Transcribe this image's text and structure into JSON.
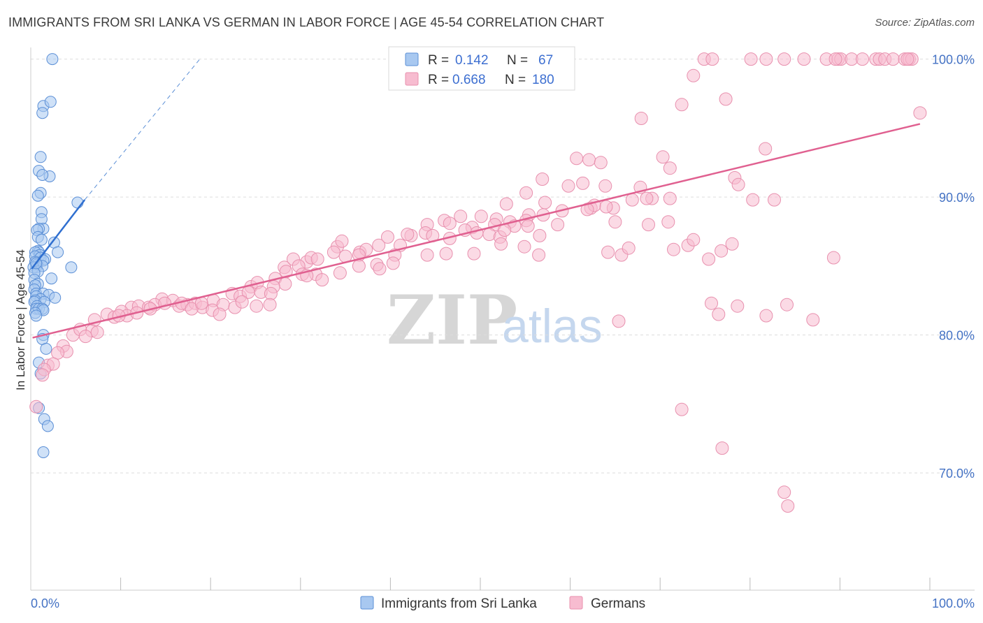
{
  "title": "IMMIGRANTS FROM SRI LANKA VS GERMAN IN LABOR FORCE | AGE 45-54 CORRELATION CHART",
  "source": "Source: ZipAtlas.com",
  "watermark": {
    "zip": "ZIP",
    "atlas": "atlas"
  },
  "colors": {
    "series1_fill": "#a8c8f0",
    "series1_stroke": "#5b8fd6",
    "series1_line": "#2f6fd0",
    "series2_fill": "#f7bcd0",
    "series2_stroke": "#e890ae",
    "series2_line": "#e06090",
    "axis_text": "#4472c4",
    "grid": "#dddddd"
  },
  "legend_top": {
    "rows": [
      {
        "r_label": "R =",
        "r_value": "0.142",
        "n_label": "N =",
        "n_value": "67"
      },
      {
        "r_label": "R =",
        "r_value": "0.668",
        "n_label": "N =",
        "n_value": "180"
      }
    ]
  },
  "legend_bottom": [
    "Immigrants from Sri Lanka",
    "Germans"
  ],
  "chart_data": {
    "type": "scatter",
    "title": "IMMIGRANTS FROM SRI LANKA VS GERMAN IN LABOR FORCE | AGE 45-54 CORRELATION CHART",
    "xlabel": "",
    "ylabel": "In Labor Force | Age 45-54",
    "xlim": [
      0,
      100
    ],
    "ylim": [
      61.5,
      101.5
    ],
    "x_tick_labels": [
      {
        "value": 0,
        "label": "0.0%"
      },
      {
        "value": 100,
        "label": "100.0%"
      }
    ],
    "y_tick_labels": [
      {
        "value": 70,
        "label": "70.0%"
      },
      {
        "value": 80,
        "label": "80.0%"
      },
      {
        "value": 90,
        "label": "90.0%"
      },
      {
        "value": 100,
        "label": "100.0%"
      }
    ],
    "x_minor_ticks": [
      10,
      20,
      30,
      40,
      50,
      60,
      70,
      80,
      90,
      100
    ],
    "grid": true,
    "legend_position": "top-center",
    "series": [
      {
        "name": "Immigrants from Sri Lanka",
        "R": 0.142,
        "N": 67,
        "trend": {
          "x": [
            0.1,
            6.0
          ],
          "y": [
            84.8,
            89.8
          ]
        },
        "trend_extension": {
          "x": [
            6.0,
            18.8
          ],
          "y": [
            89.8,
            100.0
          ]
        },
        "points": [
          [
            2.4,
            100.0
          ],
          [
            1.4,
            96.6
          ],
          [
            2.2,
            96.9
          ],
          [
            1.3,
            96.1
          ],
          [
            1.1,
            92.9
          ],
          [
            0.9,
            91.9
          ],
          [
            2.1,
            91.5
          ],
          [
            1.3,
            91.6
          ],
          [
            1.1,
            90.3
          ],
          [
            0.8,
            90.1
          ],
          [
            5.2,
            89.6
          ],
          [
            1.2,
            88.9
          ],
          [
            1.2,
            88.4
          ],
          [
            1.4,
            87.7
          ],
          [
            0.9,
            87.7
          ],
          [
            0.7,
            87.6
          ],
          [
            0.8,
            87.1
          ],
          [
            1.2,
            86.9
          ],
          [
            2.6,
            86.7
          ],
          [
            3.0,
            86.0
          ],
          [
            0.8,
            86.1
          ],
          [
            0.9,
            86.0
          ],
          [
            0.5,
            86.0
          ],
          [
            1.0,
            85.8
          ],
          [
            0.5,
            85.7
          ],
          [
            1.1,
            85.6
          ],
          [
            1.6,
            85.5
          ],
          [
            1.4,
            85.4
          ],
          [
            0.5,
            85.3
          ],
          [
            0.7,
            85.1
          ],
          [
            0.6,
            84.9
          ],
          [
            1.3,
            85.0
          ],
          [
            0.3,
            84.9
          ],
          [
            4.5,
            84.9
          ],
          [
            0.8,
            84.6
          ],
          [
            0.4,
            84.5
          ],
          [
            2.3,
            84.1
          ],
          [
            0.4,
            84.0
          ],
          [
            0.8,
            83.7
          ],
          [
            0.5,
            83.6
          ],
          [
            0.4,
            83.3
          ],
          [
            0.6,
            83.0
          ],
          [
            1.4,
            83.0
          ],
          [
            2.0,
            82.9
          ],
          [
            0.6,
            82.8
          ],
          [
            2.7,
            82.7
          ],
          [
            1.1,
            82.6
          ],
          [
            0.5,
            82.5
          ],
          [
            0.4,
            82.4
          ],
          [
            1.5,
            82.4
          ],
          [
            0.7,
            82.1
          ],
          [
            0.6,
            81.9
          ],
          [
            0.9,
            81.9
          ],
          [
            1.3,
            81.9
          ],
          [
            1.4,
            81.8
          ],
          [
            0.5,
            81.6
          ],
          [
            0.6,
            81.4
          ],
          [
            1.4,
            80.0
          ],
          [
            1.3,
            79.7
          ],
          [
            1.7,
            79.0
          ],
          [
            0.9,
            78.0
          ],
          [
            1.1,
            77.2
          ],
          [
            0.9,
            74.7
          ],
          [
            1.5,
            73.9
          ],
          [
            1.9,
            73.4
          ],
          [
            1.4,
            71.5
          ],
          [
            0.6,
            85.2
          ]
        ]
      },
      {
        "name": "Germans",
        "R": 0.668,
        "N": 180,
        "trend": {
          "x": [
            0.2,
            98.9
          ],
          "y": [
            79.8,
            95.3
          ]
        },
        "points": [
          [
            74.9,
            100.0
          ],
          [
            75.8,
            100.0
          ],
          [
            80.1,
            100.0
          ],
          [
            81.8,
            100.0
          ],
          [
            83.8,
            100.0
          ],
          [
            86.0,
            100.0
          ],
          [
            88.5,
            100.0
          ],
          [
            89.8,
            100.0
          ],
          [
            90.1,
            100.0
          ],
          [
            91.3,
            100.0
          ],
          [
            92.5,
            100.0
          ],
          [
            94.0,
            100.0
          ],
          [
            94.4,
            100.0
          ],
          [
            95.0,
            100.0
          ],
          [
            95.9,
            100.0
          ],
          [
            97.2,
            100.0
          ],
          [
            97.7,
            100.0
          ],
          [
            98.0,
            100.0
          ],
          [
            97.5,
            100.0
          ],
          [
            89.5,
            100.0
          ],
          [
            73.7,
            98.8
          ],
          [
            77.3,
            97.1
          ],
          [
            72.4,
            96.7
          ],
          [
            98.9,
            96.1
          ],
          [
            67.9,
            95.7
          ],
          [
            81.7,
            93.5
          ],
          [
            60.7,
            92.8
          ],
          [
            70.3,
            92.9
          ],
          [
            62.1,
            92.7
          ],
          [
            63.4,
            92.5
          ],
          [
            71.1,
            92.1
          ],
          [
            56.9,
            91.3
          ],
          [
            78.3,
            91.4
          ],
          [
            78.7,
            90.9
          ],
          [
            59.8,
            90.8
          ],
          [
            61.4,
            91.0
          ],
          [
            63.9,
            90.8
          ],
          [
            67.8,
            90.7
          ],
          [
            55.1,
            90.3
          ],
          [
            69.1,
            89.9
          ],
          [
            71.1,
            89.9
          ],
          [
            66.9,
            89.8
          ],
          [
            68.5,
            89.9
          ],
          [
            80.3,
            89.8
          ],
          [
            82.7,
            89.8
          ],
          [
            57.2,
            89.6
          ],
          [
            59.1,
            89.0
          ],
          [
            64.8,
            89.2
          ],
          [
            62.3,
            89.2
          ],
          [
            62.7,
            89.4
          ],
          [
            57.0,
            88.7
          ],
          [
            61.9,
            89.1
          ],
          [
            64.0,
            89.3
          ],
          [
            52.9,
            89.5
          ],
          [
            51.8,
            88.4
          ],
          [
            53.3,
            88.2
          ],
          [
            55.4,
            88.7
          ],
          [
            47.8,
            88.6
          ],
          [
            50.1,
            88.6
          ],
          [
            51.6,
            88.0
          ],
          [
            53.8,
            87.9
          ],
          [
            55.1,
            88.3
          ],
          [
            58.6,
            88.0
          ],
          [
            65.0,
            88.2
          ],
          [
            68.7,
            88.0
          ],
          [
            70.9,
            88.2
          ],
          [
            44.1,
            88.0
          ],
          [
            46.0,
            88.3
          ],
          [
            46.6,
            88.1
          ],
          [
            49.1,
            87.8
          ],
          [
            49.6,
            87.4
          ],
          [
            48.3,
            87.6
          ],
          [
            43.9,
            87.4
          ],
          [
            42.3,
            87.2
          ],
          [
            44.7,
            87.2
          ],
          [
            46.6,
            87.0
          ],
          [
            51.0,
            87.3
          ],
          [
            52.2,
            87.1
          ],
          [
            52.7,
            87.6
          ],
          [
            55.3,
            87.9
          ],
          [
            56.6,
            87.2
          ],
          [
            41.9,
            87.3
          ],
          [
            39.7,
            87.1
          ],
          [
            41.1,
            86.5
          ],
          [
            34.1,
            86.4
          ],
          [
            34.6,
            86.8
          ],
          [
            36.6,
            86.0
          ],
          [
            37.3,
            86.2
          ],
          [
            38.7,
            86.5
          ],
          [
            40.5,
            85.8
          ],
          [
            44.1,
            85.8
          ],
          [
            46.2,
            85.9
          ],
          [
            49.3,
            85.9
          ],
          [
            52.3,
            86.6
          ],
          [
            54.9,
            86.4
          ],
          [
            56.5,
            85.8
          ],
          [
            64.2,
            86.0
          ],
          [
            65.7,
            85.8
          ],
          [
            66.5,
            86.3
          ],
          [
            73.1,
            86.5
          ],
          [
            75.4,
            85.5
          ],
          [
            71.5,
            86.2
          ],
          [
            76.8,
            86.1
          ],
          [
            78.0,
            86.6
          ],
          [
            89.3,
            85.6
          ],
          [
            73.7,
            86.9
          ],
          [
            29.2,
            85.5
          ],
          [
            30.7,
            85.3
          ],
          [
            31.2,
            85.6
          ],
          [
            31.9,
            85.5
          ],
          [
            33.7,
            86.0
          ],
          [
            35.0,
            85.7
          ],
          [
            36.5,
            85.8
          ],
          [
            38.5,
            85.1
          ],
          [
            40.3,
            85.2
          ],
          [
            28.2,
            84.9
          ],
          [
            29.8,
            85.0
          ],
          [
            30.2,
            84.4
          ],
          [
            31.7,
            84.4
          ],
          [
            32.4,
            84.0
          ],
          [
            34.4,
            84.5
          ],
          [
            36.5,
            85.0
          ],
          [
            38.8,
            84.8
          ],
          [
            27.2,
            84.1
          ],
          [
            28.3,
            83.7
          ],
          [
            24.5,
            83.5
          ],
          [
            25.2,
            83.8
          ],
          [
            27.0,
            83.5
          ],
          [
            28.4,
            84.6
          ],
          [
            30.7,
            84.3
          ],
          [
            22.4,
            83.0
          ],
          [
            23.3,
            82.8
          ],
          [
            24.2,
            83.1
          ],
          [
            25.6,
            83.1
          ],
          [
            26.7,
            83.0
          ],
          [
            20.3,
            82.5
          ],
          [
            21.4,
            82.2
          ],
          [
            22.7,
            82.0
          ],
          [
            23.5,
            82.4
          ],
          [
            25.1,
            82.1
          ],
          [
            26.6,
            82.2
          ],
          [
            14.6,
            82.6
          ],
          [
            15.8,
            82.5
          ],
          [
            16.5,
            82.1
          ],
          [
            17.4,
            82.2
          ],
          [
            18.3,
            82.3
          ],
          [
            19.1,
            82.0
          ],
          [
            11.2,
            82.0
          ],
          [
            12.0,
            82.1
          ],
          [
            13.1,
            82.0
          ],
          [
            13.8,
            82.2
          ],
          [
            14.9,
            82.3
          ],
          [
            16.8,
            82.3
          ],
          [
            17.9,
            81.9
          ],
          [
            19.0,
            82.3
          ],
          [
            20.2,
            81.8
          ],
          [
            21.0,
            81.5
          ],
          [
            8.5,
            81.5
          ],
          [
            9.3,
            81.3
          ],
          [
            10.1,
            81.7
          ],
          [
            10.7,
            81.4
          ],
          [
            11.8,
            81.6
          ],
          [
            13.3,
            81.9
          ],
          [
            9.8,
            81.4
          ],
          [
            7.1,
            81.1
          ],
          [
            6.8,
            80.3
          ],
          [
            7.4,
            80.2
          ],
          [
            4.7,
            80.0
          ],
          [
            5.5,
            80.4
          ],
          [
            6.1,
            79.9
          ],
          [
            3.6,
            79.2
          ],
          [
            4.0,
            78.8
          ],
          [
            3.0,
            78.7
          ],
          [
            1.9,
            77.8
          ],
          [
            2.5,
            77.9
          ],
          [
            1.5,
            77.5
          ],
          [
            1.3,
            77.1
          ],
          [
            0.6,
            74.8
          ],
          [
            87.0,
            81.1
          ],
          [
            78.6,
            82.1
          ],
          [
            75.7,
            82.3
          ],
          [
            76.5,
            81.5
          ],
          [
            81.8,
            81.4
          ],
          [
            84.1,
            82.2
          ],
          [
            65.4,
            81.0
          ],
          [
            72.4,
            74.6
          ],
          [
            76.9,
            71.8
          ],
          [
            83.8,
            68.6
          ],
          [
            84.2,
            67.6
          ]
        ]
      }
    ]
  }
}
